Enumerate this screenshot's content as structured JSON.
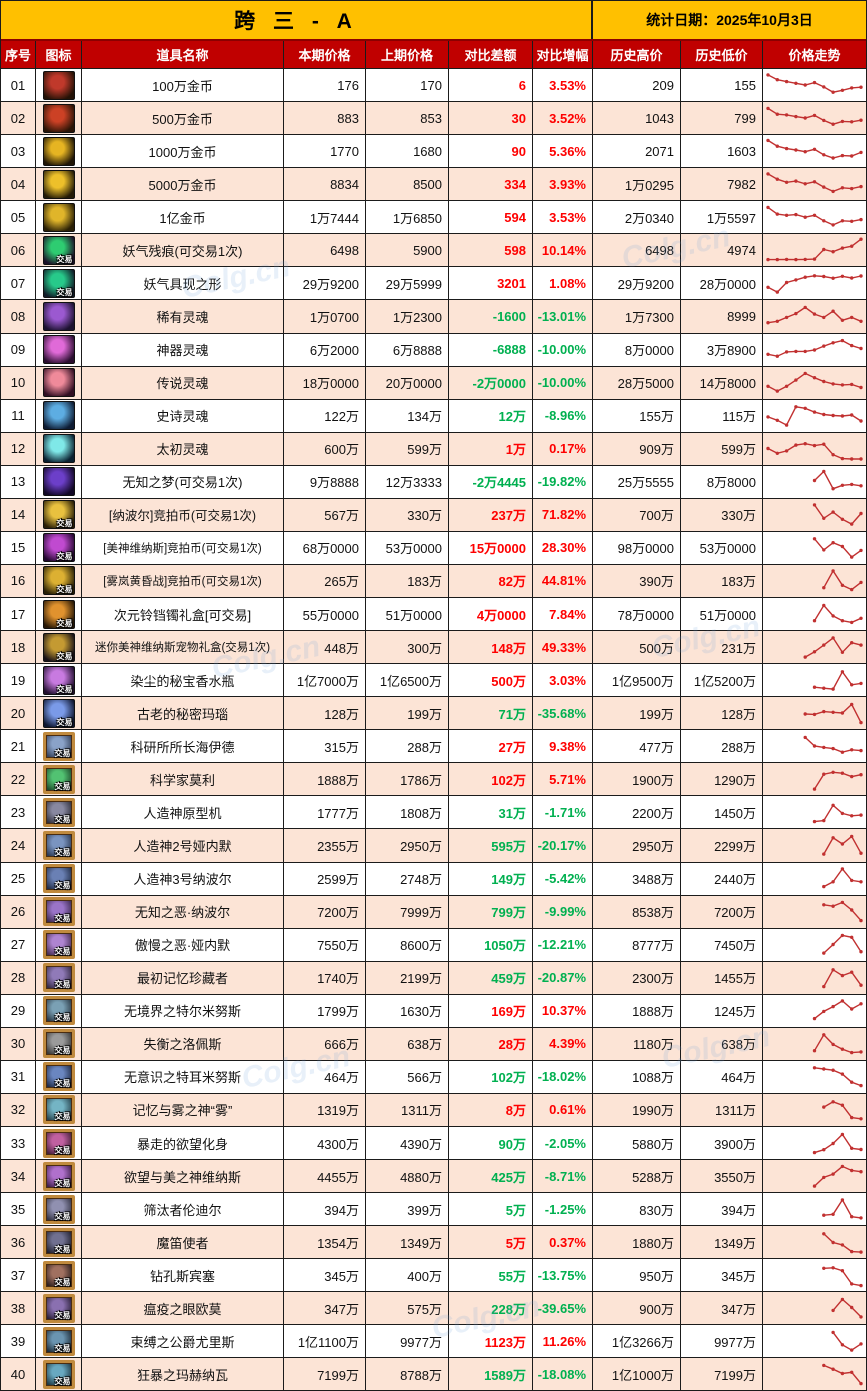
{
  "title": "跨 三 - A",
  "stat_date_label": "统计日期：2025年10月3日",
  "watermark": "Colg.cn",
  "badge_label": "交易",
  "columns": [
    "序号",
    "图标",
    "道具名称",
    "本期价格",
    "上期价格",
    "对比差额",
    "对比增幅",
    "历史高价",
    "历史低价",
    "价格走势"
  ],
  "colors": {
    "header_bg": "#c00000",
    "title_bg": "#ffc000",
    "alt_row_bg": "#fce4d6",
    "up_red": "#fe0000",
    "down_green": "#00b050",
    "trend_line": "#c13030",
    "grid": "#1b1b1b"
  },
  "rows": [
    {
      "no": "01",
      "name": "100万金币",
      "cur": "176",
      "prev": "170",
      "diff": "6",
      "pct": "3.53%",
      "dir": "up",
      "high": "209",
      "low": "155",
      "badge": false,
      "icon": {
        "frame": false,
        "c1": "#241206",
        "c2": "#c0392b"
      },
      "trend": [
        92,
        72,
        64,
        57,
        50,
        60,
        42,
        20,
        28,
        38,
        41
      ]
    },
    {
      "no": "02",
      "name": "500万金币",
      "cur": "883",
      "prev": "853",
      "diff": "30",
      "pct": "3.52%",
      "dir": "up",
      "high": "1043",
      "low": "799",
      "badge": false,
      "icon": {
        "frame": false,
        "c1": "#2a1406",
        "c2": "#cc4125"
      },
      "trend": [
        90,
        66,
        63,
        56,
        50,
        61,
        40,
        24,
        36,
        34,
        41
      ]
    },
    {
      "no": "03",
      "name": "1000万金币",
      "cur": "1770",
      "prev": "1680",
      "diff": "90",
      "pct": "5.36%",
      "dir": "up",
      "high": "2071",
      "low": "1603",
      "badge": false,
      "icon": {
        "frame": false,
        "c1": "#201606",
        "c2": "#e6b422"
      },
      "trend": [
        94,
        70,
        60,
        54,
        47,
        57,
        34,
        21,
        31,
        29,
        44
      ]
    },
    {
      "no": "04",
      "name": "5000万金币",
      "cur": "8834",
      "prev": "8500",
      "diff": "334",
      "pct": "3.93%",
      "dir": "up",
      "high": "1万0295",
      "low": "7982",
      "badge": false,
      "icon": {
        "frame": false,
        "c1": "#241a06",
        "c2": "#edc02a"
      },
      "trend": [
        92,
        70,
        57,
        62,
        51,
        59,
        37,
        19,
        34,
        31,
        39
      ]
    },
    {
      "no": "05",
      "name": "1亿金币",
      "cur": "1万7444",
      "prev": "1万6850",
      "diff": "594",
      "pct": "3.53%",
      "dir": "up",
      "high": "2万0340",
      "low": "1万5597",
      "badge": false,
      "icon": {
        "frame": false,
        "c1": "#2a2006",
        "c2": "#e0b52a"
      },
      "trend": [
        90,
        62,
        57,
        60,
        49,
        57,
        34,
        17,
        34,
        32,
        39
      ]
    },
    {
      "no": "06",
      "name": "妖气残痕(可交易1次)",
      "cur": "6498",
      "prev": "5900",
      "diff": "598",
      "pct": "10.14%",
      "dir": "up",
      "high": "6498",
      "low": "4974",
      "badge": true,
      "icon": {
        "frame": false,
        "c1": "#1c1028",
        "c2": "#2ecc71"
      },
      "trend": [
        10,
        10,
        11,
        10,
        11,
        12,
        52,
        43,
        58,
        66,
        95
      ]
    },
    {
      "no": "07",
      "name": "妖气具现之形",
      "cur": "29万9200",
      "prev": "29万5999",
      "diff": "3201",
      "pct": "1.08%",
      "dir": "up",
      "high": "29万9200",
      "low": "28万0000",
      "badge": true,
      "icon": {
        "frame": false,
        "c1": "#101c28",
        "c2": "#27c98a"
      },
      "trend": [
        32,
        12,
        52,
        63,
        74,
        80,
        77,
        70,
        78,
        71,
        79
      ]
    },
    {
      "no": "08",
      "name": "稀有灵魂",
      "cur": "1万0700",
      "prev": "1万2300",
      "diff": "-1600",
      "pct": "-13.01%",
      "dir": "down",
      "high": "1万7300",
      "low": "8999",
      "badge": false,
      "icon": {
        "frame": false,
        "c1": "#1c1230",
        "c2": "#9b59d0"
      },
      "trend": [
        22,
        28,
        44,
        60,
        86,
        58,
        44,
        70,
        32,
        44,
        28
      ]
    },
    {
      "no": "09",
      "name": "神器灵魂",
      "cur": "6万2000",
      "prev": "6万8888",
      "diff": "-6888",
      "pct": "-10.00%",
      "dir": "down",
      "high": "8万0000",
      "low": "3万8900",
      "badge": false,
      "icon": {
        "frame": false,
        "c1": "#2a0e30",
        "c2": "#e06ad8"
      },
      "trend": [
        28,
        20,
        38,
        40,
        40,
        46,
        62,
        76,
        85,
        64,
        52
      ]
    },
    {
      "no": "10",
      "name": "传说灵魂",
      "cur": "18万0000",
      "prev": "20万0000",
      "diff": "-2万0000",
      "pct": "-10.00%",
      "dir": "down",
      "high": "28万5000",
      "low": "14万8000",
      "badge": false,
      "icon": {
        "frame": false,
        "c1": "#300e22",
        "c2": "#ef8a9a"
      },
      "trend": [
        32,
        12,
        32,
        58,
        86,
        68,
        52,
        42,
        38,
        40,
        27
      ]
    },
    {
      "no": "11",
      "name": "史诗灵魂",
      "cur": "122万",
      "prev": "134万",
      "diff": "12万",
      "pct": "-8.96%",
      "dir": "down",
      "high": "155万",
      "low": "115万",
      "badge": false,
      "icon": {
        "frame": false,
        "c1": "#0e1c34",
        "c2": "#5dade2"
      },
      "trend": [
        42,
        28,
        8,
        84,
        78,
        62,
        52,
        48,
        46,
        50,
        25
      ]
    },
    {
      "no": "12",
      "name": "太初灵魂",
      "cur": "600万",
      "prev": "599万",
      "diff": "1万",
      "pct": "0.17%",
      "dir": "up",
      "high": "909万",
      "low": "599万",
      "badge": false,
      "icon": {
        "frame": false,
        "c1": "#0a2030",
        "c2": "#7fe8e8"
      },
      "trend": [
        48,
        28,
        38,
        62,
        68,
        60,
        66,
        22,
        6,
        4,
        4
      ]
    },
    {
      "no": "13",
      "name": "无知之梦(可交易1次)",
      "cur": "9万8888",
      "prev": "12万3333",
      "diff": "-2万4445",
      "pct": "-19.82%",
      "dir": "down",
      "high": "25万5555",
      "low": "8万8000",
      "badge": false,
      "icon": {
        "frame": false,
        "c1": "#120826",
        "c2": "#6c3fc9"
      },
      "trend": [
        52,
        90,
        18,
        32,
        36,
        30
      ]
    },
    {
      "no": "14",
      "name": "[纳波尔]竞拍币(可交易1次)",
      "cur": "567万",
      "prev": "330万",
      "diff": "237万",
      "pct": "71.82%",
      "dir": "up",
      "high": "700万",
      "low": "330万",
      "badge": true,
      "icon": {
        "frame": false,
        "c1": "#2a1e06",
        "c2": "#e8c13f"
      },
      "trend": [
        88,
        32,
        58,
        28,
        8,
        52
      ]
    },
    {
      "no": "15",
      "name": "[美神维纳斯]竞拍币(可交易1次)",
      "cur": "68万0000",
      "prev": "53万0000",
      "diff": "15万0000",
      "pct": "28.30%",
      "dir": "up",
      "high": "98万0000",
      "low": "53万0000",
      "badge": true,
      "icon": {
        "frame": false,
        "c1": "#240830",
        "c2": "#c04ad0"
      },
      "trend": [
        84,
        38,
        68,
        52,
        8,
        36
      ]
    },
    {
      "no": "16",
      "name": "[雾岚黄昏战]竞拍币(可交易1次)",
      "cur": "265万",
      "prev": "183万",
      "diff": "82万",
      "pct": "44.81%",
      "dir": "up",
      "high": "390万",
      "low": "183万",
      "badge": true,
      "icon": {
        "frame": false,
        "c1": "#2a2006",
        "c2": "#dcb032"
      },
      "trend": [
        18,
        88,
        28,
        10,
        40
      ]
    },
    {
      "no": "17",
      "name": "次元铃铛镯礼盒[可交易]",
      "cur": "55万0000",
      "prev": "51万0000",
      "diff": "4万0000",
      "pct": "7.84%",
      "dir": "up",
      "high": "78万0000",
      "low": "51万0000",
      "badge": true,
      "icon": {
        "frame": false,
        "c1": "#281806",
        "c2": "#e0922e"
      },
      "trend": [
        22,
        86,
        42,
        22,
        15,
        32
      ]
    },
    {
      "no": "18",
      "name": "迷你美神维纳斯宠物礼盒(交易1次)",
      "cur": "448万",
      "prev": "300万",
      "diff": "148万",
      "pct": "49.33%",
      "dir": "up",
      "high": "500万",
      "low": "231万",
      "badge": true,
      "icon": {
        "frame": false,
        "c1": "#181016",
        "c2": "#c49a32"
      },
      "trend": [
        8,
        30,
        58,
        88,
        28,
        68,
        58
      ]
    },
    {
      "no": "19",
      "name": "染尘的秘宝香水瓶",
      "cur": "1亿7000万",
      "prev": "1亿6500万",
      "diff": "500万",
      "pct": "3.03%",
      "dir": "up",
      "high": "1亿9500万",
      "low": "1亿5200万",
      "badge": true,
      "icon": {
        "frame": false,
        "c1": "#221030",
        "c2": "#c87ae0"
      },
      "trend": [
        20,
        16,
        12,
        84,
        30,
        36
      ]
    },
    {
      "no": "20",
      "name": "古老的秘密玛瑙",
      "cur": "128万",
      "prev": "199万",
      "diff": "71万",
      "pct": "-35.68%",
      "dir": "down",
      "high": "199万",
      "low": "128万",
      "badge": true,
      "icon": {
        "frame": false,
        "c1": "#0e1630",
        "c2": "#7a9ae8"
      },
      "trend": [
        46,
        44,
        56,
        53,
        50,
        86,
        10
      ]
    },
    {
      "no": "21",
      "name": "科研所所长海伊德",
      "cur": "315万",
      "prev": "288万",
      "diff": "27万",
      "pct": "9.38%",
      "dir": "up",
      "high": "477万",
      "low": "288万",
      "badge": true,
      "icon": {
        "frame": true,
        "c1": "#35425c",
        "c2": "#8aa2c8"
      },
      "trend": [
        86,
        50,
        44,
        39,
        24,
        34,
        31
      ]
    },
    {
      "no": "22",
      "name": "科学家莫利",
      "cur": "1888万",
      "prev": "1786万",
      "diff": "102万",
      "pct": "5.71%",
      "dir": "up",
      "high": "1900万",
      "low": "1290万",
      "badge": true,
      "icon": {
        "frame": true,
        "c1": "#1e4a2c",
        "c2": "#52c272"
      },
      "trend": [
        8,
        70,
        78,
        74,
        60,
        68
      ]
    },
    {
      "no": "23",
      "name": "人造神原型机",
      "cur": "1777万",
      "prev": "1808万",
      "diff": "31万",
      "pct": "-1.71%",
      "dir": "down",
      "high": "2200万",
      "low": "1450万",
      "badge": true,
      "icon": {
        "frame": true,
        "c1": "#30303c",
        "c2": "#8888a0"
      },
      "trend": [
        10,
        14,
        78,
        44,
        34,
        37
      ]
    },
    {
      "no": "24",
      "name": "人造神2号娅内默",
      "cur": "2355万",
      "prev": "2950万",
      "diff": "595万",
      "pct": "-20.17%",
      "dir": "down",
      "high": "2950万",
      "low": "2299万",
      "badge": true,
      "icon": {
        "frame": true,
        "c1": "#2c3a54",
        "c2": "#7a94c0"
      },
      "trend": [
        12,
        80,
        54,
        86,
        16
      ]
    },
    {
      "no": "25",
      "name": "人造神3号纳波尔",
      "cur": "2599万",
      "prev": "2748万",
      "diff": "149万",
      "pct": "-5.42%",
      "dir": "down",
      "high": "3488万",
      "low": "2440万",
      "badge": true,
      "icon": {
        "frame": true,
        "c1": "#222e48",
        "c2": "#6a80b4"
      },
      "trend": [
        14,
        34,
        88,
        40,
        34
      ]
    },
    {
      "no": "26",
      "name": "无知之恶·纳波尔",
      "cur": "7200万",
      "prev": "7999万",
      "diff": "799万",
      "pct": "-9.99%",
      "dir": "down",
      "high": "8538万",
      "low": "7200万",
      "badge": true,
      "icon": {
        "frame": true,
        "c1": "#3c2a50",
        "c2": "#9a74c8"
      },
      "trend": [
        76,
        70,
        86,
        54,
        10
      ]
    },
    {
      "no": "27",
      "name": "傲慢之恶·娅内默",
      "cur": "7550万",
      "prev": "8600万",
      "diff": "1050万",
      "pct": "-12.21%",
      "dir": "down",
      "high": "8777万",
      "low": "7450万",
      "badge": true,
      "icon": {
        "frame": true,
        "c1": "#462e54",
        "c2": "#ae84d0"
      },
      "trend": [
        12,
        48,
        86,
        78,
        18
      ]
    },
    {
      "no": "28",
      "name": "最初记忆珍藏者",
      "cur": "1740万",
      "prev": "2199万",
      "diff": "459万",
      "pct": "-20.87%",
      "dir": "down",
      "high": "2300万",
      "low": "1455万",
      "badge": true,
      "icon": {
        "frame": true,
        "c1": "#342a44",
        "c2": "#907ab8"
      },
      "trend": [
        10,
        80,
        56,
        70,
        16
      ]
    },
    {
      "no": "29",
      "name": "无境界之特尔米努斯",
      "cur": "1799万",
      "prev": "1630万",
      "diff": "169万",
      "pct": "10.37%",
      "dir": "up",
      "high": "1888万",
      "low": "1245万",
      "badge": true,
      "icon": {
        "frame": true,
        "c1": "#2a3844",
        "c2": "#7aa0b4"
      },
      "trend": [
        14,
        44,
        64,
        88,
        54,
        76
      ]
    },
    {
      "no": "30",
      "name": "失衡之洛佩斯",
      "cur": "666万",
      "prev": "638万",
      "diff": "28万",
      "pct": "4.39%",
      "dir": "up",
      "high": "1180万",
      "low": "638万",
      "badge": true,
      "icon": {
        "frame": true,
        "c1": "#383838",
        "c2": "#9a9a9a"
      },
      "trend": [
        18,
        84,
        44,
        24,
        10,
        13
      ]
    },
    {
      "no": "31",
      "name": "无意识之特耳米努斯",
      "cur": "464万",
      "prev": "566万",
      "diff": "102万",
      "pct": "-18.02%",
      "dir": "down",
      "high": "1088万",
      "low": "464万",
      "badge": true,
      "icon": {
        "frame": true,
        "c1": "#202c48",
        "c2": "#6a86c0"
      },
      "trend": [
        84,
        79,
        74,
        58,
        24,
        10
      ]
    },
    {
      "no": "32",
      "name": "记忆与雾之神“雾”",
      "cur": "1319万",
      "prev": "1311万",
      "diff": "8万",
      "pct": "0.61%",
      "dir": "up",
      "high": "1990万",
      "low": "1311万",
      "badge": true,
      "icon": {
        "frame": true,
        "c1": "#28444e",
        "c2": "#74b4c4"
      },
      "trend": [
        58,
        80,
        66,
        14,
        9
      ]
    },
    {
      "no": "33",
      "name": "暴走的欲望化身",
      "cur": "4300万",
      "prev": "4390万",
      "diff": "90万",
      "pct": "-2.05%",
      "dir": "down",
      "high": "5880万",
      "low": "3900万",
      "badge": true,
      "icon": {
        "frame": true,
        "c1": "#44203a",
        "c2": "#c060a0"
      },
      "trend": [
        10,
        22,
        48,
        86,
        28,
        23
      ]
    },
    {
      "no": "34",
      "name": "欲望与美之神维纳斯",
      "cur": "4455万",
      "prev": "4880万",
      "diff": "425万",
      "pct": "-8.71%",
      "dir": "down",
      "high": "5288万",
      "low": "3550万",
      "badge": true,
      "icon": {
        "frame": true,
        "c1": "#40204c",
        "c2": "#b070cc"
      },
      "trend": [
        8,
        44,
        58,
        90,
        73,
        68
      ]
    },
    {
      "no": "35",
      "name": "筛汰者伦迪尔",
      "cur": "394万",
      "prev": "399万",
      "diff": "5万",
      "pct": "-1.25%",
      "dir": "down",
      "high": "830万",
      "low": "394万",
      "badge": true,
      "icon": {
        "frame": true,
        "c1": "#343444",
        "c2": "#9090b0"
      },
      "trend": [
        24,
        28,
        88,
        18,
        13
      ]
    },
    {
      "no": "36",
      "name": "魔笛使者",
      "cur": "1354万",
      "prev": "1349万",
      "diff": "5万",
      "pct": "0.37%",
      "dir": "up",
      "high": "1880万",
      "low": "1349万",
      "badge": true,
      "icon": {
        "frame": true,
        "c1": "#20202e",
        "c2": "#707090"
      },
      "trend": [
        84,
        48,
        38,
        10,
        8
      ]
    },
    {
      "no": "37",
      "name": "钻孔斯宾塞",
      "cur": "345万",
      "prev": "400万",
      "diff": "55万",
      "pct": "-13.75%",
      "dir": "down",
      "high": "950万",
      "low": "345万",
      "badge": true,
      "icon": {
        "frame": true,
        "c1": "#2e2020",
        "c2": "#a07060"
      },
      "trend": [
        78,
        80,
        68,
        13,
        6
      ]
    },
    {
      "no": "38",
      "name": "瘟疫之眼欧莫",
      "cur": "347万",
      "prev": "575万",
      "diff": "228万",
      "pct": "-39.65%",
      "dir": "down",
      "high": "900万",
      "low": "347万",
      "badge": true,
      "icon": {
        "frame": true,
        "c1": "#2a2038",
        "c2": "#8a70b0"
      },
      "trend": [
        40,
        86,
        52,
        13
      ]
    },
    {
      "no": "39",
      "name": "束缚之公爵尤里斯",
      "cur": "1亿1100万",
      "prev": "9977万",
      "diff": "1123万",
      "pct": "11.26%",
      "dir": "up",
      "high": "1亿3266万",
      "low": "9977万",
      "badge": true,
      "icon": {
        "frame": true,
        "c1": "#1e2c38",
        "c2": "#6a94b0"
      },
      "trend": [
        86,
        34,
        12,
        38
      ]
    },
    {
      "no": "40",
      "name": "狂暴之玛赫纳瓦",
      "cur": "7199万",
      "prev": "8788万",
      "diff": "1589万",
      "pct": "-18.08%",
      "dir": "down",
      "high": "1亿1000万",
      "low": "7199万",
      "badge": true,
      "icon": {
        "frame": true,
        "c1": "#1e3844",
        "c2": "#68a8c0"
      },
      "trend": [
        86,
        70,
        52,
        57,
        10
      ]
    }
  ]
}
